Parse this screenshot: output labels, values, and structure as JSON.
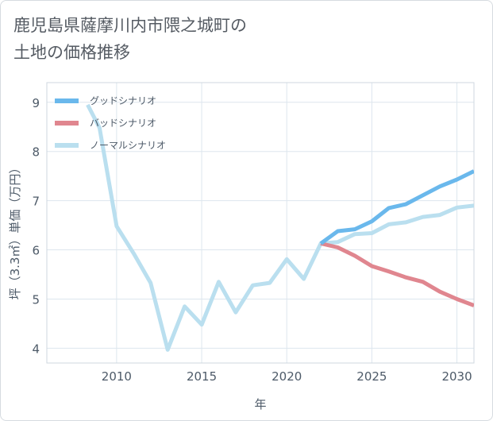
{
  "title_lines": [
    "鹿児島県薩摩川内市隈之城町の",
    "土地の価格推移"
  ],
  "chart_data": {
    "type": "line",
    "title": "鹿児島県薩摩川内市隈之城町の土地の価格推移",
    "xlabel": "年",
    "ylabel": "坪（3.3㎡）単価（万円）",
    "xlim": [
      2005.9,
      2031
    ],
    "ylim": [
      3.7,
      9.4
    ],
    "x_ticks": [
      2010,
      2015,
      2020,
      2025,
      2030
    ],
    "y_ticks": [
      4,
      5,
      6,
      7,
      8,
      9
    ],
    "grid": true,
    "legend_position": "top-left",
    "series": [
      {
        "name": "グッドシナリオ",
        "color": "#6ab8ec",
        "x": [
          2022,
          2023,
          2024,
          2025,
          2026,
          2027,
          2028,
          2029,
          2030,
          2031
        ],
        "values": [
          6.13,
          6.38,
          6.42,
          6.58,
          6.85,
          6.93,
          7.11,
          7.29,
          7.43,
          7.6
        ]
      },
      {
        "name": "バッドシナリオ",
        "color": "#e0868f",
        "x": [
          2022,
          2023,
          2024,
          2025,
          2026,
          2027,
          2028,
          2029,
          2030,
          2031
        ],
        "values": [
          6.13,
          6.05,
          5.88,
          5.67,
          5.56,
          5.44,
          5.35,
          5.15,
          5.0,
          4.87
        ]
      },
      {
        "name": "ノーマルシナリオ",
        "color": "#badfef",
        "x": [
          2008.3,
          2009,
          2010,
          2011,
          2012,
          2013,
          2014,
          2015,
          2016,
          2017,
          2018,
          2019,
          2020,
          2021,
          2022,
          2023,
          2024,
          2025,
          2026,
          2027,
          2028,
          2029,
          2030,
          2031
        ],
        "values": [
          8.95,
          8.48,
          6.48,
          5.93,
          5.33,
          3.97,
          4.85,
          4.48,
          5.35,
          4.73,
          5.28,
          5.33,
          5.81,
          5.41,
          6.13,
          6.16,
          6.32,
          6.34,
          6.52,
          6.56,
          6.67,
          6.71,
          6.86,
          6.9
        ]
      }
    ]
  }
}
